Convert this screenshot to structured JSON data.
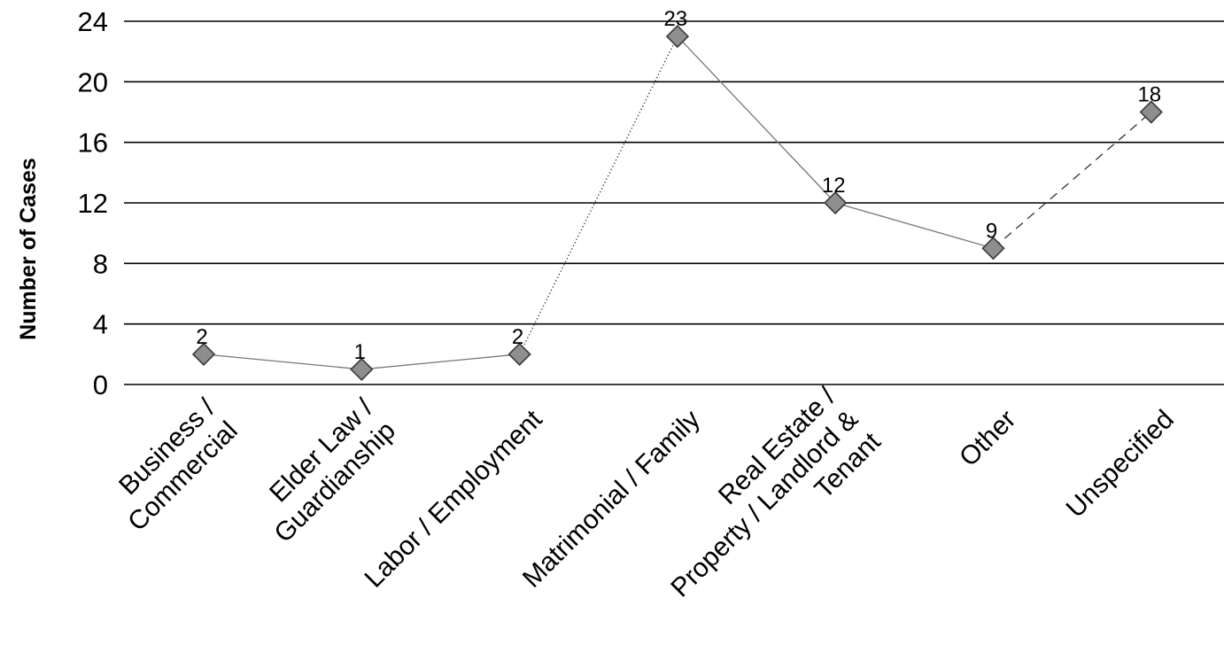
{
  "chart_data": {
    "type": "line",
    "title": "",
    "xlabel": "",
    "ylabel": "Number of Cases",
    "ylim": [
      0,
      24
    ],
    "yticks": [
      0,
      4,
      8,
      12,
      16,
      20,
      24
    ],
    "grid": true,
    "legend": "none",
    "categories": [
      [
        "Business /",
        "Commercial"
      ],
      [
        "Elder Law /",
        "Guardianship"
      ],
      [
        "Labor / Employment"
      ],
      [
        "Matrimonial / Family"
      ],
      [
        "Real Estate /",
        "Property / Landlord &",
        "Tenant"
      ],
      [
        "Other"
      ],
      [
        "Unspecified"
      ]
    ],
    "series": [
      {
        "values": [
          2,
          1,
          2,
          23,
          12,
          9,
          18
        ],
        "data_labels": [
          "2",
          "1",
          "2",
          "23",
          "12",
          "9",
          "18"
        ],
        "marker": "diamond",
        "line_color": "#777777",
        "marker_color": "#8e8e8e",
        "segment_styles": [
          "solid",
          "solid",
          "dotted",
          "solid",
          "solid",
          "dashed"
        ]
      }
    ]
  }
}
